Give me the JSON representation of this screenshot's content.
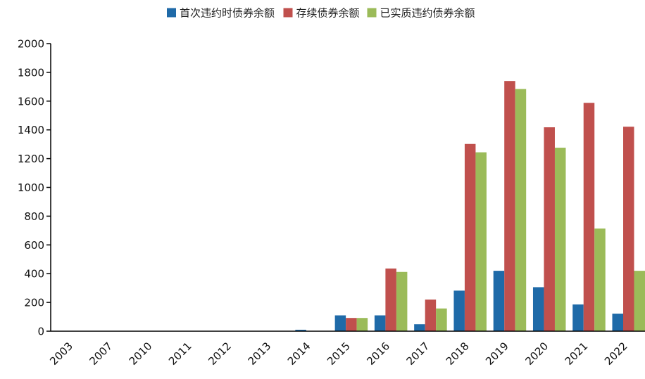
{
  "chart_data": {
    "type": "bar",
    "title": "",
    "xlabel": "",
    "ylabel": "",
    "categories": [
      "2003",
      "2007",
      "2010",
      "2011",
      "2012",
      "2013",
      "2014",
      "2015",
      "2016",
      "2017",
      "2018",
      "2019",
      "2020",
      "2021",
      "2022"
    ],
    "ylim": [
      0,
      2000
    ],
    "yticks": [
      0,
      200,
      400,
      600,
      800,
      1000,
      1200,
      1400,
      1600,
      1800,
      2000
    ],
    "grid": false,
    "legend_position": "top-center",
    "series": [
      {
        "name": "首次违约时债券余额",
        "color": "#1f6aa8",
        "values": [
          0,
          0,
          0,
          0,
          0,
          2,
          10,
          110,
          110,
          48,
          282,
          420,
          306,
          186,
          122
        ]
      },
      {
        "name": "存续债券余额",
        "color": "#c0504d",
        "values": [
          0,
          0,
          0,
          0,
          0,
          0,
          0,
          92,
          436,
          220,
          1302,
          1740,
          1418,
          1588,
          1422
        ]
      },
      {
        "name": "已实质违约债券余额",
        "color": "#9bbb59",
        "values": [
          0,
          0,
          0,
          0,
          0,
          0,
          0,
          92,
          412,
          158,
          1244,
          1684,
          1276,
          714,
          420
        ]
      }
    ]
  }
}
